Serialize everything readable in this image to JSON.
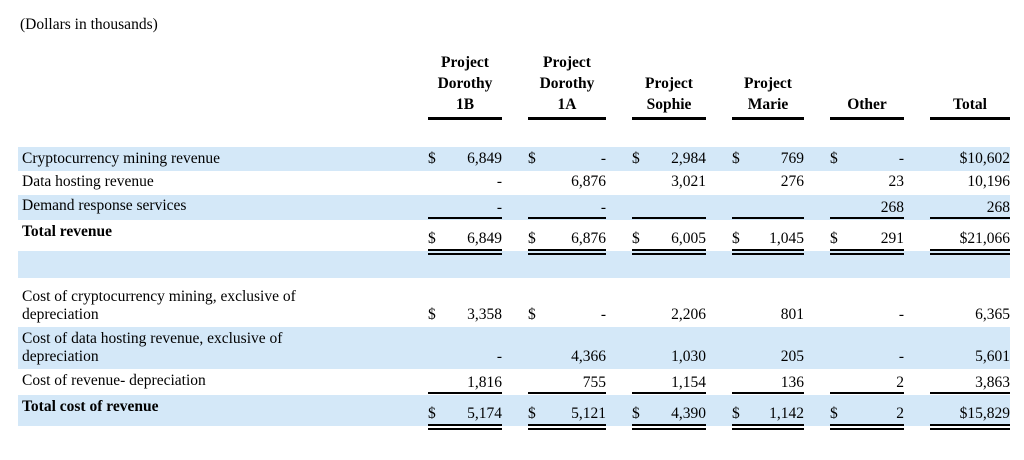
{
  "title": "(Dollars in thousands)",
  "colors": {
    "band": "#d4e8f8",
    "rule": "#000000",
    "text": "#000000"
  },
  "table": {
    "columns": [
      {
        "id": "project-dorothy-1b",
        "header_lines": [
          "Project",
          "Dorothy",
          "1B"
        ]
      },
      {
        "id": "project-dorothy-1a",
        "header_lines": [
          "Project",
          "Dorothy",
          "1A"
        ]
      },
      {
        "id": "project-sophie",
        "header_lines": [
          "Project",
          "Sophie"
        ]
      },
      {
        "id": "project-marie",
        "header_lines": [
          "Project",
          "Marie"
        ]
      },
      {
        "id": "other",
        "header_lines": [
          "Other"
        ]
      },
      {
        "id": "total",
        "header_lines": [
          "Total"
        ]
      }
    ],
    "rows": [
      {
        "label": "Cryptocurrency mining revenue",
        "shaded": true,
        "bold": false,
        "rule": "none",
        "cells": [
          {
            "sign": "$",
            "value": "6,849"
          },
          {
            "sign": "$",
            "value": "-"
          },
          {
            "sign": "$",
            "value": "2,984"
          },
          {
            "sign": "$",
            "value": "769"
          },
          {
            "sign": "$",
            "value": "-"
          },
          {
            "sign": "",
            "value": "$10,602"
          }
        ]
      },
      {
        "label": "Data hosting revenue",
        "shaded": false,
        "bold": false,
        "rule": "none",
        "cells": [
          {
            "sign": "",
            "value": "-"
          },
          {
            "sign": "",
            "value": "6,876"
          },
          {
            "sign": "",
            "value": "3,021"
          },
          {
            "sign": "",
            "value": "276"
          },
          {
            "sign": "",
            "value": "23"
          },
          {
            "sign": "",
            "value": "10,196"
          }
        ]
      },
      {
        "label": "Demand response services",
        "shaded": true,
        "bold": false,
        "rule": "single-bottom",
        "cells": [
          {
            "sign": "",
            "value": "-"
          },
          {
            "sign": "",
            "value": "-"
          },
          {
            "sign": "",
            "value": ""
          },
          {
            "sign": "",
            "value": ""
          },
          {
            "sign": "",
            "value": "268"
          },
          {
            "sign": "",
            "value": "268"
          }
        ]
      },
      {
        "label": "Total revenue",
        "shaded": false,
        "bold": true,
        "rule": "double-bottom",
        "cells": [
          {
            "sign": "$",
            "value": "6,849"
          },
          {
            "sign": "$",
            "value": "6,876"
          },
          {
            "sign": "$",
            "value": "6,005"
          },
          {
            "sign": "$",
            "value": "1,045"
          },
          {
            "sign": "$",
            "value": "291"
          },
          {
            "sign": "",
            "value": "$21,066"
          }
        ]
      },
      {
        "type": "spacer",
        "shaded": true
      },
      {
        "label": "Cost of cryptocurrency mining, exclusive of\ndepreciation",
        "shaded": false,
        "bold": false,
        "rule": "none",
        "cells": [
          {
            "sign": "$",
            "value": "3,358"
          },
          {
            "sign": "$",
            "value": "-"
          },
          {
            "sign": "",
            "value": "2,206"
          },
          {
            "sign": "",
            "value": "801"
          },
          {
            "sign": "",
            "value": "-"
          },
          {
            "sign": "",
            "value": "6,365"
          }
        ]
      },
      {
        "label": "Cost of data hosting revenue, exclusive of\ndepreciation",
        "shaded": true,
        "bold": false,
        "rule": "none",
        "cells": [
          {
            "sign": "",
            "value": "-"
          },
          {
            "sign": "",
            "value": "4,366"
          },
          {
            "sign": "",
            "value": "1,030"
          },
          {
            "sign": "",
            "value": "205"
          },
          {
            "sign": "",
            "value": "-"
          },
          {
            "sign": "",
            "value": "5,601"
          }
        ]
      },
      {
        "label": "Cost of revenue- depreciation",
        "shaded": false,
        "bold": false,
        "rule": "single-bottom",
        "cells": [
          {
            "sign": "",
            "value": "1,816"
          },
          {
            "sign": "",
            "value": "755"
          },
          {
            "sign": "",
            "value": "1,154"
          },
          {
            "sign": "",
            "value": "136"
          },
          {
            "sign": "",
            "value": "2"
          },
          {
            "sign": "",
            "value": "3,863"
          }
        ]
      },
      {
        "label": "Total cost of revenue",
        "shaded": true,
        "bold": true,
        "rule": "double-bottom",
        "cells": [
          {
            "sign": "$",
            "value": "5,174"
          },
          {
            "sign": "$",
            "value": "5,121"
          },
          {
            "sign": "$",
            "value": "4,390"
          },
          {
            "sign": "$",
            "value": "1,142"
          },
          {
            "sign": "$",
            "value": "2"
          },
          {
            "sign": "",
            "value": "$15,829"
          }
        ]
      }
    ]
  }
}
